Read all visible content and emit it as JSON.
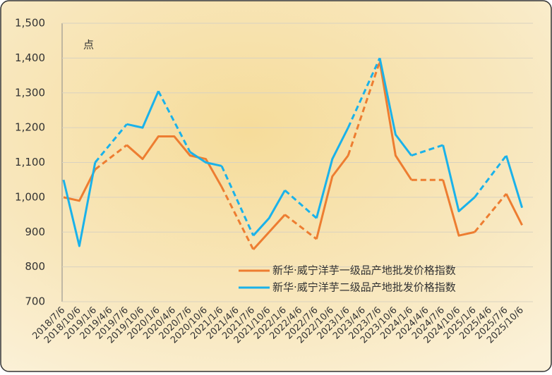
{
  "chart_data": {
    "type": "line",
    "unit": "点",
    "categories": [
      "2018/7/6",
      "2018/10/6",
      "2019/1/6",
      "2019/4/6",
      "2019/7/6",
      "2019/10/6",
      "2020/1/6",
      "2020/4/6",
      "2020/7/6",
      "2020/10/6",
      "2021/1/6",
      "2021/4/6",
      "2021/7/6",
      "2021/10/6",
      "2022/1/6",
      "2022/4/6",
      "2022/7/6",
      "2022/10/6",
      "2023/1/6",
      "2023/4/6",
      "2023/7/6",
      "2023/10/6",
      "2024/1/6",
      "2024/4/6",
      "2024/7/6",
      "2024/10/6",
      "2025/1/6",
      "2025/4/6",
      "2025/7/6",
      "2025/10/6"
    ],
    "series": [
      {
        "name": "新华·威宁洋芋一级品产地批发价格指数",
        "color": "#ed7d31",
        "values": [
          1000,
          990,
          1080,
          null,
          1150,
          1110,
          1175,
          1175,
          1120,
          1110,
          1030,
          null,
          850,
          900,
          950,
          null,
          880,
          1060,
          1120,
          null,
          1390,
          1120,
          1050,
          null,
          1050,
          890,
          900,
          null,
          1010,
          920
        ]
      },
      {
        "name": "新华·威宁洋芋二级品产地批发价格指数",
        "color": "#1ab2ea",
        "values": [
          1050,
          860,
          1100,
          null,
          1210,
          1200,
          1305,
          null,
          1130,
          1100,
          1090,
          null,
          890,
          940,
          1020,
          null,
          940,
          1110,
          1200,
          null,
          1400,
          1180,
          1120,
          null,
          1150,
          960,
          1000,
          null,
          1120,
          970
        ]
      }
    ],
    "gap_style": "dashed",
    "ylim": [
      700,
      1500
    ],
    "yticks": [
      {
        "value": 700,
        "label": "700"
      },
      {
        "value": 800,
        "label": "800"
      },
      {
        "value": 900,
        "label": "900"
      },
      {
        "value": 1000,
        "label": "1,000"
      },
      {
        "value": 1100,
        "label": "1,100"
      },
      {
        "value": 1200,
        "label": "1,200"
      },
      {
        "value": 1300,
        "label": "1,300"
      },
      {
        "value": 1400,
        "label": "1,400"
      },
      {
        "value": 1500,
        "label": "1,500"
      }
    ],
    "grid": true,
    "legend": "lower right"
  }
}
